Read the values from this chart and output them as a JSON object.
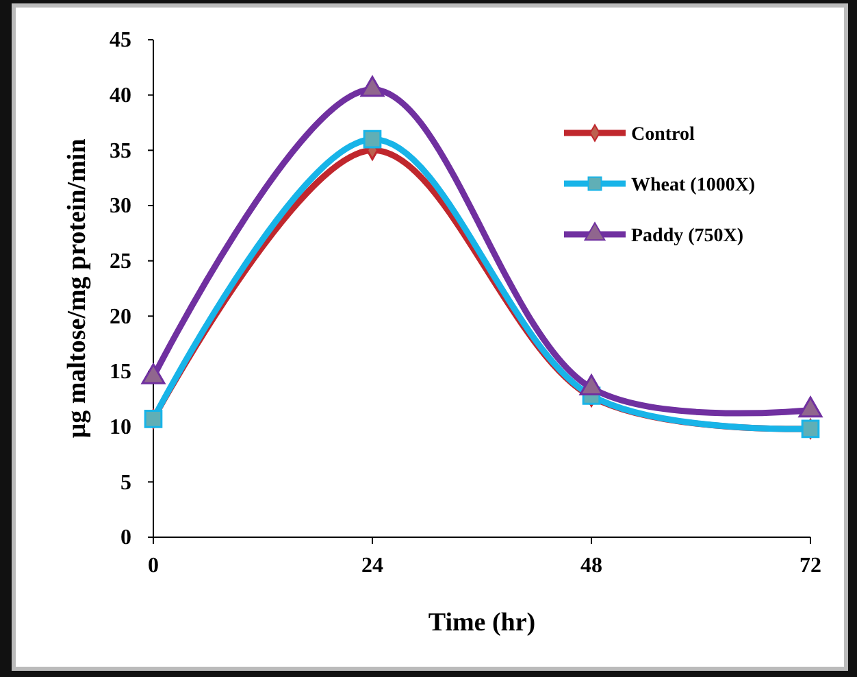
{
  "chart_data": {
    "type": "line",
    "xlabel": "Time (hr)",
    "ylabel": "µg maltose/mg protein/min",
    "x": [
      0,
      24,
      48,
      72
    ],
    "xlim": [
      0,
      72
    ],
    "xticks": [
      0,
      24,
      48,
      72
    ],
    "ylim": [
      0,
      45
    ],
    "yticks": [
      0,
      5,
      10,
      15,
      20,
      25,
      30,
      35,
      40,
      45
    ],
    "grid": false,
    "legend": "top right",
    "series": [
      {
        "name": "Control",
        "color": "#c0272d",
        "marker": "diamond",
        "values": [
          10.7,
          35,
          12.7,
          9.8
        ]
      },
      {
        "name": "Wheat (1000X)",
        "color": "#18b4e8",
        "marker": "square",
        "values": [
          10.7,
          36,
          12.8,
          9.8
        ]
      },
      {
        "name": "Paddy (750X)",
        "color": "#7030a0",
        "marker": "triangle",
        "values": [
          14.5,
          40.5,
          13.5,
          11.5
        ]
      }
    ]
  }
}
